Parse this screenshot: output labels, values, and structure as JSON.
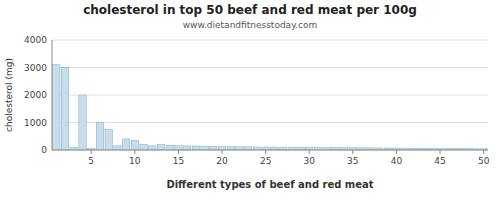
{
  "chart_data": {
    "type": "bar",
    "title": "cholesterol in top 50 beef and red meat per 100g",
    "subtitle": "www.dietandfitnesstoday.com",
    "x_label": "Different types of beef and red meat",
    "y_label": "cholesterol (mg)",
    "x": [
      1,
      2,
      3,
      4,
      5,
      6,
      7,
      8,
      9,
      10,
      11,
      12,
      13,
      14,
      15,
      16,
      17,
      18,
      19,
      20,
      21,
      22,
      23,
      24,
      25,
      26,
      27,
      28,
      29,
      30,
      31,
      32,
      33,
      34,
      35,
      36,
      37,
      38,
      39,
      40,
      41,
      42,
      43,
      44,
      45,
      46,
      47,
      48,
      49,
      50
    ],
    "values": [
      3100,
      3000,
      100,
      2000,
      50,
      1000,
      750,
      150,
      400,
      350,
      200,
      150,
      200,
      170,
      160,
      150,
      145,
      140,
      135,
      130,
      125,
      120,
      115,
      110,
      108,
      105,
      102,
      100,
      98,
      95,
      93,
      90,
      88,
      85,
      83,
      80,
      78,
      75,
      73,
      70,
      68,
      65,
      63,
      60,
      58,
      55,
      53,
      50,
      48,
      45
    ],
    "color": "#c8dde8",
    "xlim": [
      0.5,
      50.5
    ],
    "xticks": [
      5,
      10,
      15,
      20,
      25,
      30,
      35,
      40,
      45,
      50
    ],
    "ylim": [
      0,
      4000
    ],
    "yticks": [
      0,
      1000,
      2000,
      3000,
      4000
    ],
    "grid": true
  }
}
